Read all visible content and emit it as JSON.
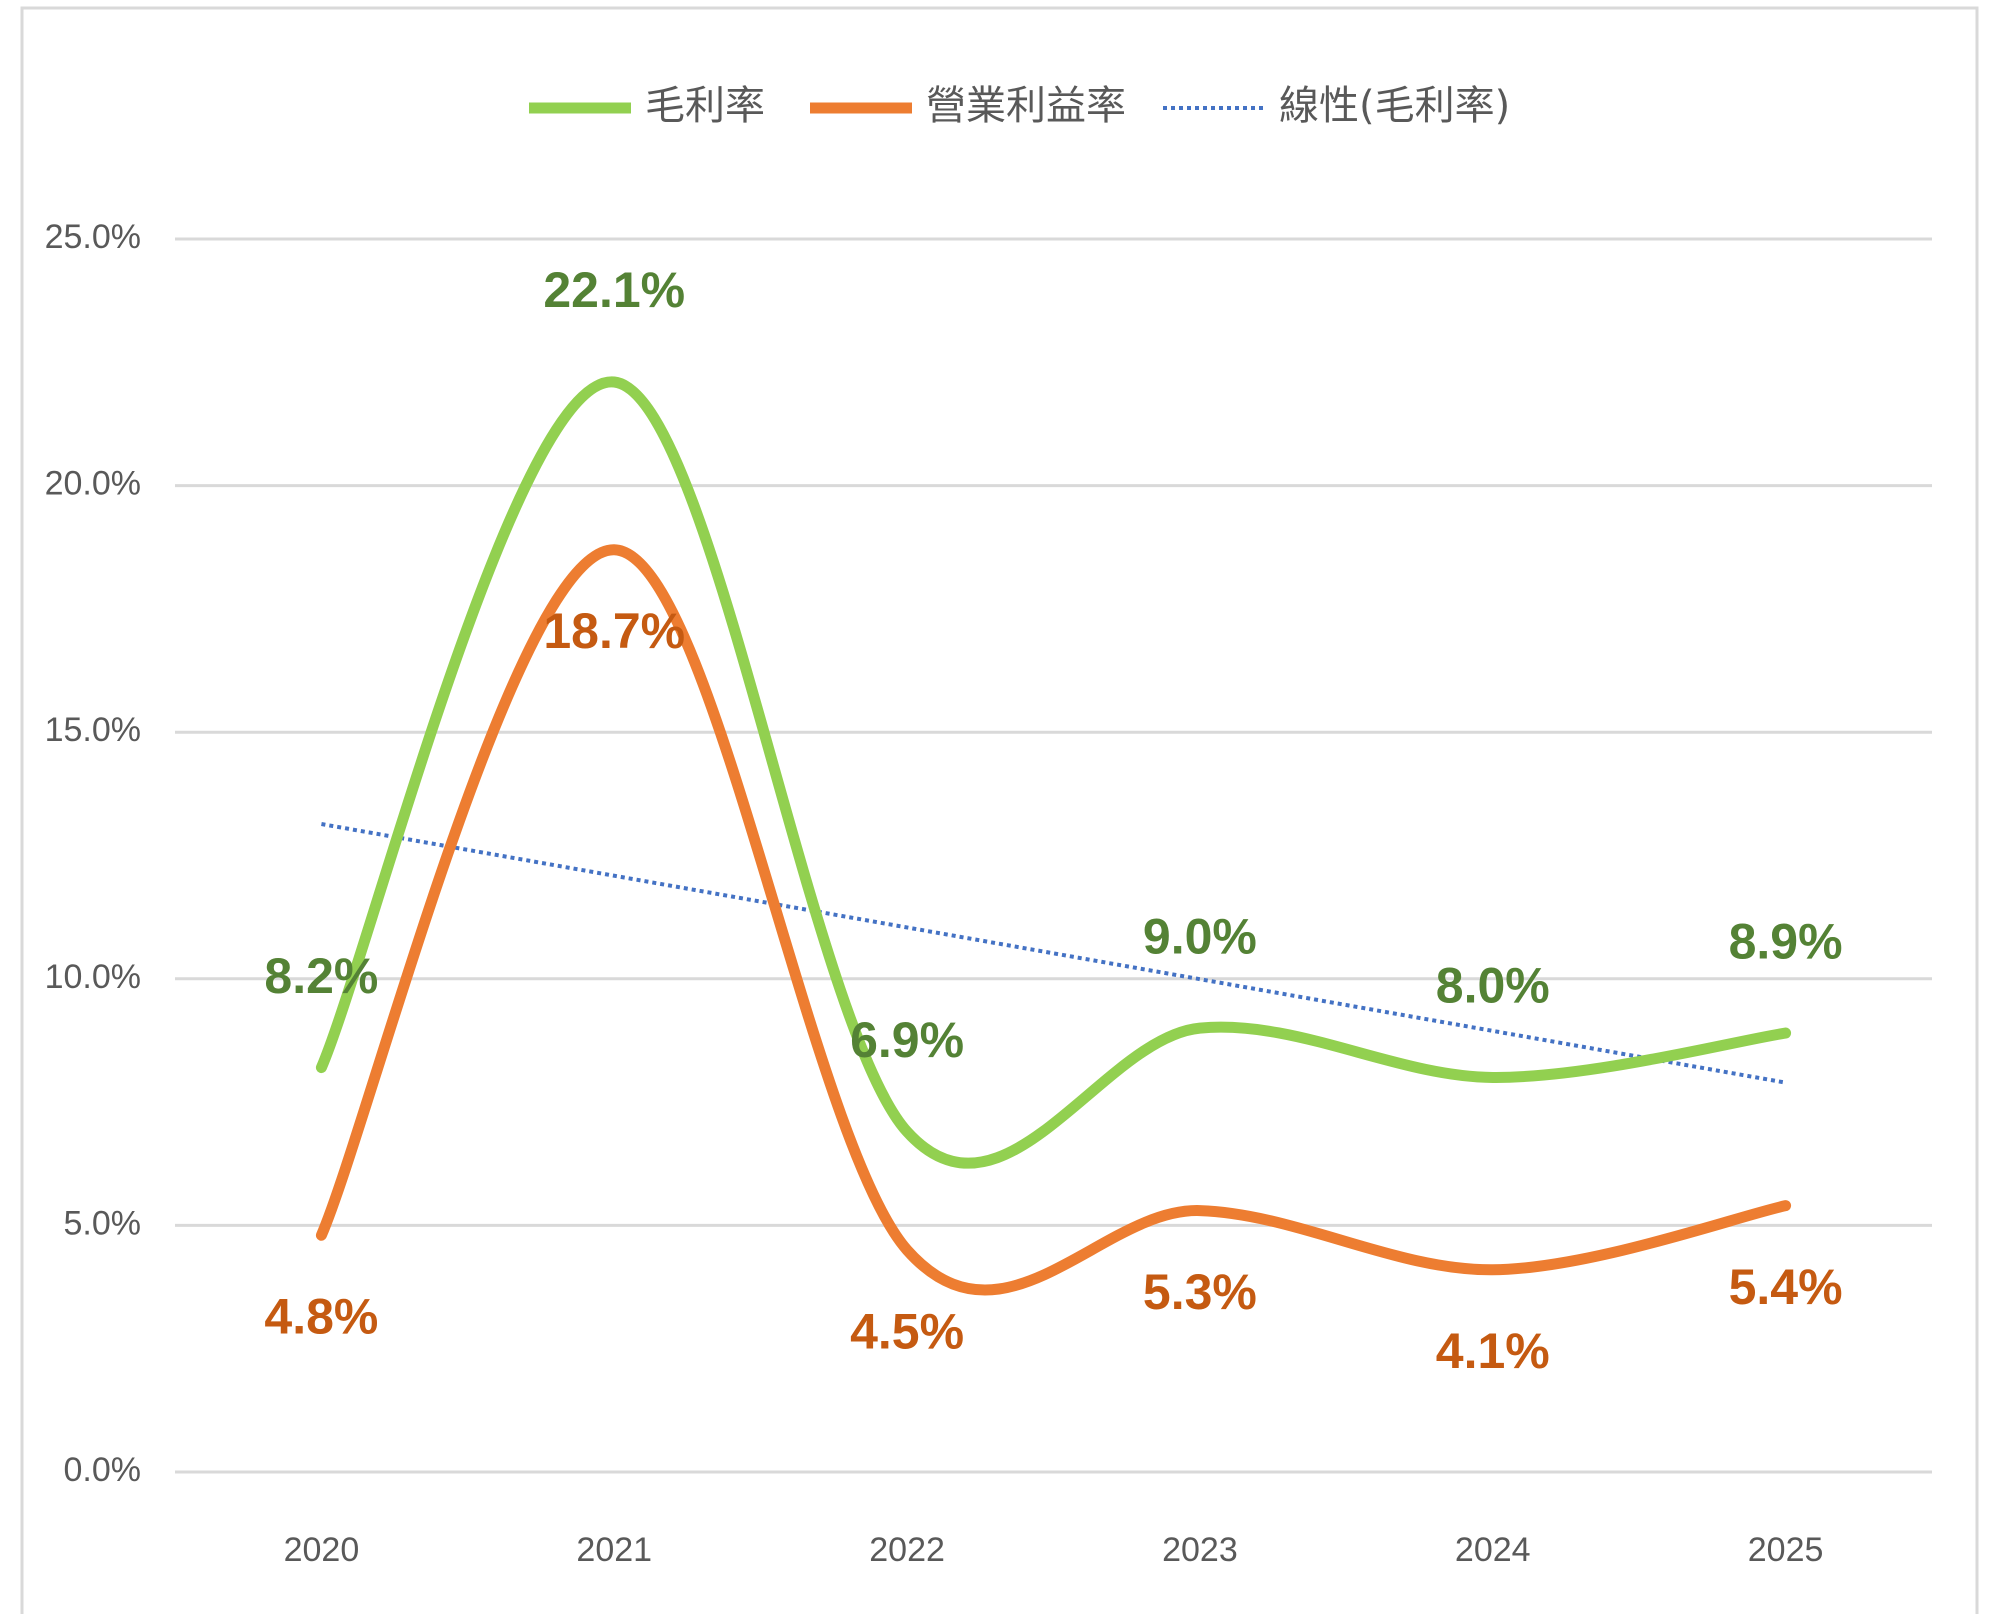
{
  "chart_data": {
    "type": "line",
    "categories": [
      "2020",
      "2021",
      "2022",
      "2023",
      "2024",
      "2025"
    ],
    "series": [
      {
        "name": "毛利率",
        "color": "#92d050",
        "label_color": "#548235",
        "values": [
          8.2,
          22.1,
          6.9,
          9.0,
          8.0,
          8.9
        ],
        "value_labels": [
          "8.2%",
          "22.1%",
          "6.9%",
          "9.0%",
          "8.0%",
          "8.9%"
        ]
      },
      {
        "name": "營業利益率",
        "color": "#ed7d31",
        "label_color": "#c55a11",
        "values": [
          4.8,
          18.7,
          4.5,
          5.3,
          4.1,
          5.4
        ],
        "value_labels": [
          "4.8%",
          "18.7%",
          "4.5%",
          "5.3%",
          "4.1%",
          "5.4%"
        ]
      }
    ],
    "trendline": {
      "name": "線性(毛利率)",
      "color": "#4472c4",
      "type": "linear"
    },
    "ylim": [
      0,
      25
    ],
    "yticks": [
      {
        "value": 0,
        "label": "0.0%"
      },
      {
        "value": 5,
        "label": "5.0%"
      },
      {
        "value": 10,
        "label": "10.0%"
      },
      {
        "value": 15,
        "label": "15.0%"
      },
      {
        "value": 20,
        "label": "20.0%"
      },
      {
        "value": 25,
        "label": "25.0%"
      }
    ],
    "grid": true,
    "smooth": true,
    "legend": "top"
  }
}
